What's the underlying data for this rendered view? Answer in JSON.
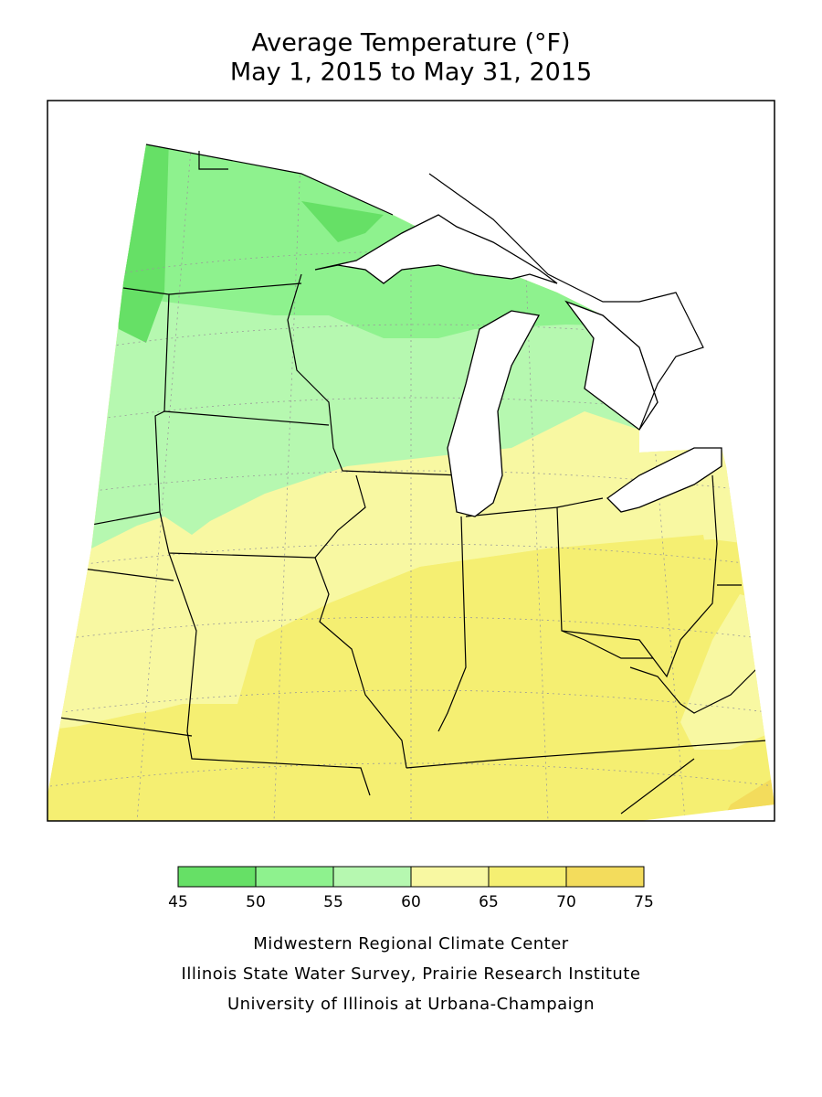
{
  "title": [
    "Average Temperature (°F)",
    "May 1, 2015 to May 31, 2015"
  ],
  "legend": {
    "ticks": [
      45,
      50,
      55,
      60,
      65,
      70,
      75
    ],
    "colors": [
      "#66e066",
      "#8ef28e",
      "#b6f8b0",
      "#f8f8a2",
      "#f5ef72",
      "#f3dc5c"
    ]
  },
  "credits": [
    "Midwestern Regional Climate Center",
    "Illinois State Water Survey, Prairie Research Institute",
    "University of Illinois at Urbana-Champaign"
  ]
}
